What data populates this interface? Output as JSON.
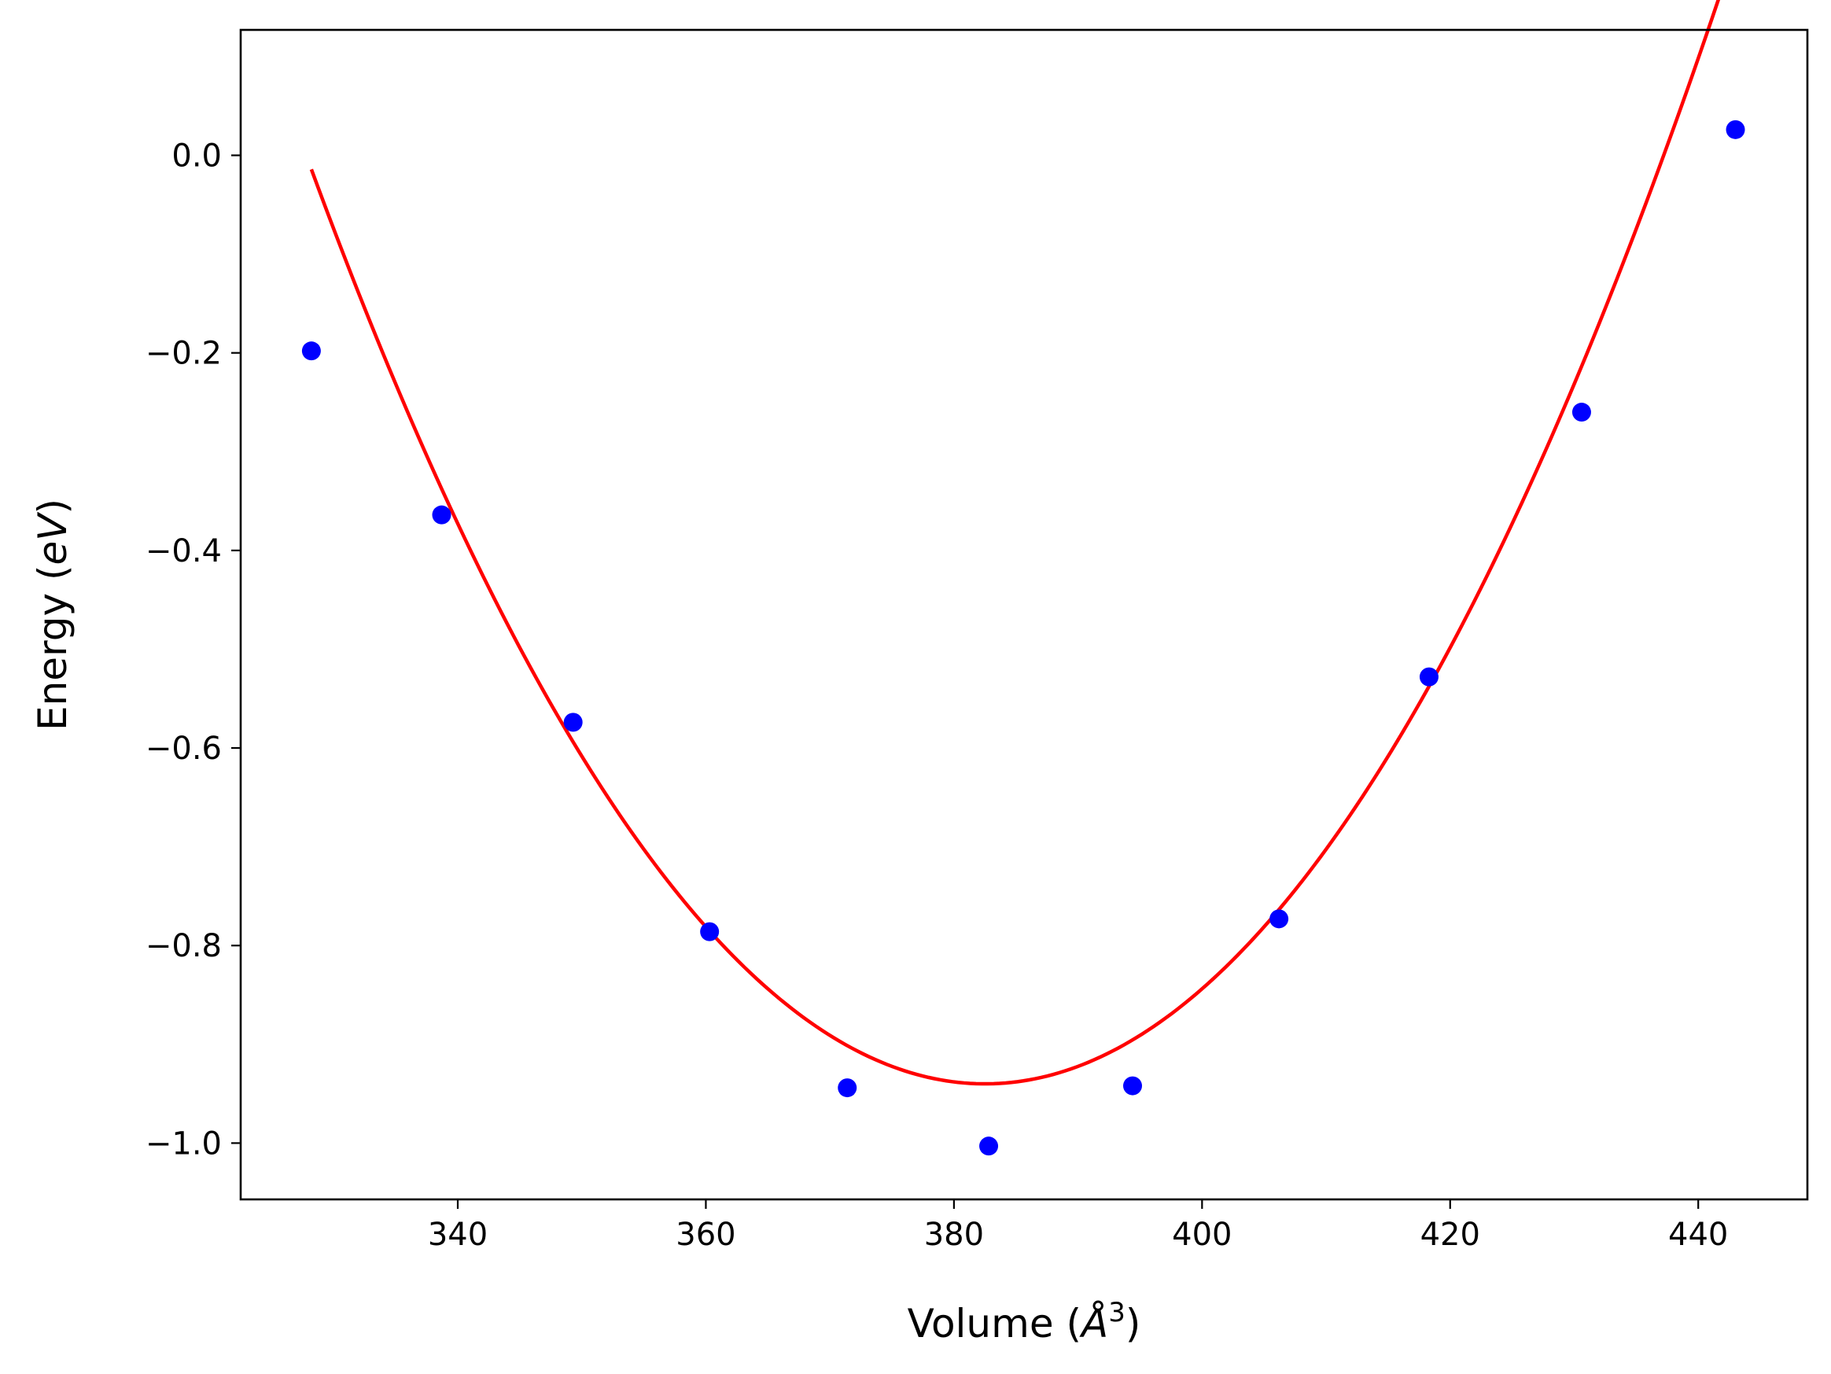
{
  "chart_data": {
    "type": "scatter",
    "title": "",
    "xlabel": "Volume",
    "xlabel_unit": "Å",
    "xlabel_exponent": "3",
    "ylabel": "Energy",
    "ylabel_unit": "eV",
    "xlim": [
      322.5,
      448.8
    ],
    "ylim": [
      -1.057,
      0.127
    ],
    "xticks": [
      340,
      360,
      380,
      400,
      420,
      440
    ],
    "xtick_labels": [
      "340",
      "360",
      "380",
      "400",
      "420",
      "440"
    ],
    "yticks": [
      0.0,
      -0.2,
      -0.4,
      -0.6,
      -0.8,
      -1.0
    ],
    "ytick_labels": [
      "0.0",
      "−0.2",
      "−0.4",
      "−0.6",
      "−0.8",
      "−1.0"
    ],
    "grid": false,
    "series": [
      {
        "kind": "scatter",
        "color": "#0000ff",
        "x": [
          328.2,
          338.7,
          349.3,
          360.3,
          371.4,
          382.8,
          394.4,
          406.2,
          418.3,
          430.6,
          443.0
        ],
        "y": [
          -0.198,
          -0.364,
          -0.574,
          -0.786,
          -0.944,
          -1.003,
          -0.942,
          -0.773,
          -0.528,
          -0.26,
          0.026
        ]
      },
      {
        "kind": "line",
        "color": "#ff0000",
        "fit": {
          "x_min": 328.2,
          "x_max": 443.0,
          "x0": 382.5,
          "y0": -0.94,
          "a": 0.000314
        }
      }
    ]
  }
}
